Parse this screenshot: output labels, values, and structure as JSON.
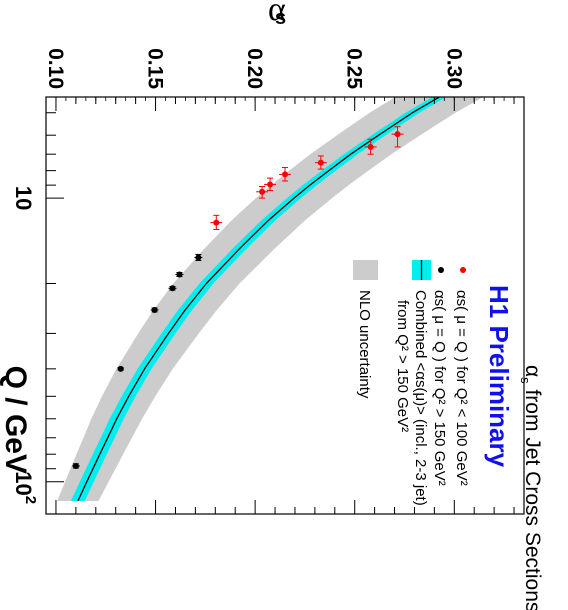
{
  "chart_data": {
    "type": "scatter",
    "title": "αs from Jet Cross Sections",
    "subtitle": "H1 Preliminary",
    "xlabel": "Q / GeV",
    "ylabel": "αs",
    "x_scale": "log",
    "xlim": [
      4.4,
      130
    ],
    "ylim": [
      0.095,
      0.335
    ],
    "y_ticks": [
      "0.10",
      "0.15",
      "0.20",
      "0.25",
      "0.30"
    ],
    "x_ticks": [
      {
        "value": 10,
        "label": "10"
      },
      {
        "value": 100,
        "label": "10",
        "sup": "2"
      }
    ],
    "series": [
      {
        "name": "αs( μ = Q ) for Q² < 100 GeV²",
        "color": "#ff0000",
        "points": [
          {
            "x": 5.95,
            "y": 0.2715,
            "xlo": 5.6,
            "xhi": 6.6,
            "yerr": 0.003
          },
          {
            "x": 6.6,
            "y": 0.258,
            "xlo": 6.2,
            "xhi": 7.0,
            "yerr": 0.003
          },
          {
            "x": 7.5,
            "y": 0.233,
            "xlo": 7.1,
            "xhi": 7.9,
            "yerr": 0.003
          },
          {
            "x": 8.25,
            "y": 0.215,
            "xlo": 7.8,
            "xhi": 8.7,
            "yerr": 0.003
          },
          {
            "x": 8.95,
            "y": 0.2075,
            "xlo": 8.5,
            "xhi": 9.4,
            "yerr": 0.003
          },
          {
            "x": 9.5,
            "y": 0.2035,
            "xlo": 9.1,
            "xhi": 10.0,
            "yerr": 0.003
          },
          {
            "x": 12.2,
            "y": 0.1805,
            "xlo": 11.5,
            "xhi": 12.9,
            "yerr": 0.003
          }
        ]
      },
      {
        "name": "αs( μ = Q ) for Q² > 150 GeV²",
        "color": "#000000",
        "points": [
          {
            "x": 16.2,
            "y": 0.1715,
            "xlo": 15.8,
            "xhi": 16.6,
            "yerr": 0.002
          },
          {
            "x": 18.6,
            "y": 0.162,
            "xlo": 18.3,
            "xhi": 18.9,
            "yerr": 0.002
          },
          {
            "x": 20.8,
            "y": 0.1585,
            "xlo": 20.5,
            "xhi": 21.1,
            "yerr": 0.002
          },
          {
            "x": 24.8,
            "y": 0.1495,
            "xlo": 24.4,
            "xhi": 25.2,
            "yerr": 0.002
          },
          {
            "x": 40.0,
            "y": 0.1325,
            "xlo": 39.6,
            "xhi": 40.4,
            "yerr": 0.0015
          },
          {
            "x": 88.0,
            "y": 0.11,
            "xlo": 86.5,
            "xhi": 89.5,
            "yerr": 0.002
          }
        ]
      }
    ],
    "fit": {
      "name": "Combined <αs(μ)> (incl., 2-3 jet)",
      "name_line2": "from Q² > 150 GeV²",
      "color": "#000000",
      "band_color": "#00eeee",
      "curve": [
        {
          "x": 4.4,
          "y": 0.2925
        },
        {
          "x": 5.0,
          "y": 0.279
        },
        {
          "x": 6.0,
          "y": 0.262
        },
        {
          "x": 7.0,
          "y": 0.248
        },
        {
          "x": 8.0,
          "y": 0.237
        },
        {
          "x": 9.0,
          "y": 0.2275
        },
        {
          "x": 10.0,
          "y": 0.2195
        },
        {
          "x": 12.0,
          "y": 0.2065
        },
        {
          "x": 15.0,
          "y": 0.1925
        },
        {
          "x": 20.0,
          "y": 0.1755
        },
        {
          "x": 25.0,
          "y": 0.1645
        },
        {
          "x": 30.0,
          "y": 0.1565
        },
        {
          "x": 40.0,
          "y": 0.1445
        },
        {
          "x": 50.0,
          "y": 0.1365
        },
        {
          "x": 60.0,
          "y": 0.1305
        },
        {
          "x": 70.0,
          "y": 0.126
        },
        {
          "x": 80.0,
          "y": 0.122
        },
        {
          "x": 100.0,
          "y": 0.1155
        },
        {
          "x": 117.0,
          "y": 0.111
        }
      ],
      "band_halfwidth": 0.0035
    },
    "nlo_band": {
      "name": "NLO uncertainty",
      "color": "#cccccc",
      "halfwidth_low_q": 0.022,
      "halfwidth_high_q": 0.01
    }
  }
}
